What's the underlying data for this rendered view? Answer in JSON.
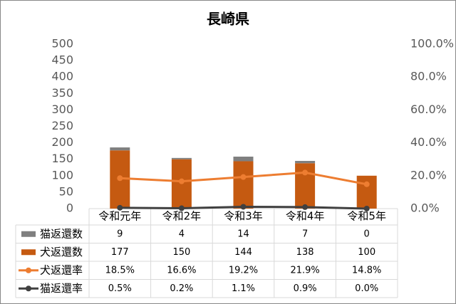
{
  "chart_data": {
    "type": "bar",
    "title": "長崎県",
    "stacked": true,
    "grid": false,
    "categories": [
      "令和元年",
      "令和2年",
      "令和3年",
      "令和4年",
      "令和5年"
    ],
    "series": [
      {
        "name": "猫返還数",
        "type": "bar",
        "color": "#7f7f7f",
        "values": [
          9,
          4,
          14,
          7,
          0
        ]
      },
      {
        "name": "犬返還数",
        "type": "bar",
        "color": "#c55a11",
        "values": [
          177,
          150,
          144,
          138,
          100
        ]
      },
      {
        "name": "犬返還率",
        "type": "line",
        "axis": "y2",
        "color": "#ed7d31",
        "values": [
          18.5,
          16.6,
          19.2,
          21.9,
          14.8
        ],
        "value_labels": [
          "18.5%",
          "16.6%",
          "19.2%",
          "21.9%",
          "14.8%"
        ]
      },
      {
        "name": "猫返還率",
        "type": "line",
        "axis": "y2",
        "color": "#404040",
        "values": [
          0.5,
          0.2,
          1.1,
          0.9,
          0.0
        ],
        "value_labels": [
          "0.5%",
          "0.2%",
          "1.1%",
          "0.9%",
          "0.0%"
        ]
      }
    ],
    "ylim": [
      0,
      500
    ],
    "yticks": [
      0,
      50,
      100,
      150,
      200,
      250,
      300,
      350,
      400,
      450,
      500
    ],
    "y2lim": [
      0,
      100
    ],
    "y2ticks": [
      {
        "value": 0,
        "label": "0.0%"
      },
      {
        "value": 20,
        "label": "20.0%"
      },
      {
        "value": 40,
        "label": "40.0%"
      },
      {
        "value": 60,
        "label": "60.0%"
      },
      {
        "value": 80,
        "label": "80.0%"
      },
      {
        "value": 100,
        "label": "100.0%"
      }
    ]
  }
}
